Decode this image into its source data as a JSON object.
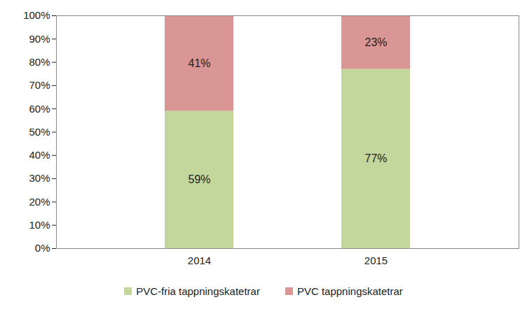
{
  "chart_data": {
    "type": "bar",
    "stacked": true,
    "data_labels": true,
    "legend": "bottom",
    "grid": false,
    "categories": [
      "2014",
      "2015"
    ],
    "series": [
      {
        "name": "PVC-fria tappningskatetrar",
        "color": "#c3d69b",
        "values": [
          59,
          77
        ],
        "value_labels": [
          "59%",
          "77%"
        ]
      },
      {
        "name": "PVC tappningskatetrar",
        "color": "#d99694",
        "values": [
          41,
          23
        ],
        "value_labels": [
          "41%",
          "23%"
        ]
      }
    ],
    "ylim": [
      0,
      100
    ],
    "yticks": [
      {
        "value": 0,
        "label": "0%"
      },
      {
        "value": 10,
        "label": "10%"
      },
      {
        "value": 20,
        "label": "20%"
      },
      {
        "value": 30,
        "label": "30%"
      },
      {
        "value": 40,
        "label": "40%"
      },
      {
        "value": 50,
        "label": "50%"
      },
      {
        "value": 60,
        "label": "60%"
      },
      {
        "value": 70,
        "label": "70%"
      },
      {
        "value": 80,
        "label": "80%"
      },
      {
        "value": 90,
        "label": "90%"
      },
      {
        "value": 100,
        "label": "100%"
      }
    ]
  }
}
